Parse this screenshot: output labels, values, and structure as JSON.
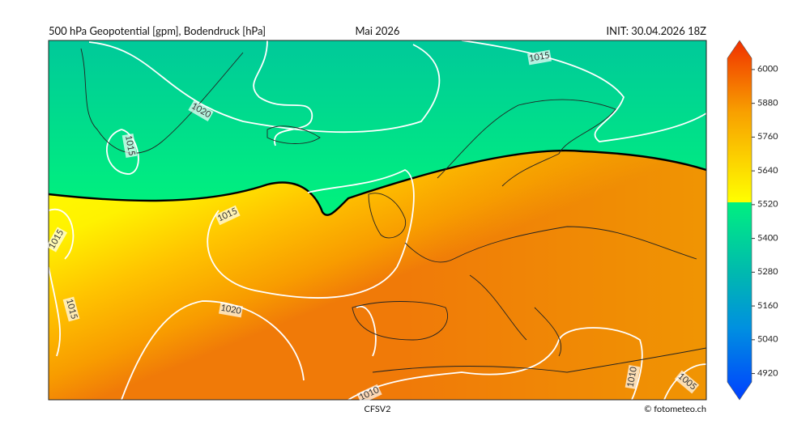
{
  "header": {
    "title": "500 hPa Geopotential [gpm], Bodendruck [hPa]",
    "period": "Mai 2026",
    "init": "INIT: 30.04.2026 18Z"
  },
  "map": {
    "isobar_labels": [
      1015,
      1020,
      1015,
      1015,
      1015,
      1020,
      1015,
      1010,
      1010,
      1005
    ]
  },
  "colorbar": {
    "range": [
      4890,
      6040
    ],
    "ticks": [
      6000,
      5880,
      5760,
      5640,
      5520,
      5400,
      5280,
      5160,
      5040,
      4920
    ]
  },
  "footer": {
    "model": "CFSV2",
    "credit": "© fotometeo.ch"
  }
}
